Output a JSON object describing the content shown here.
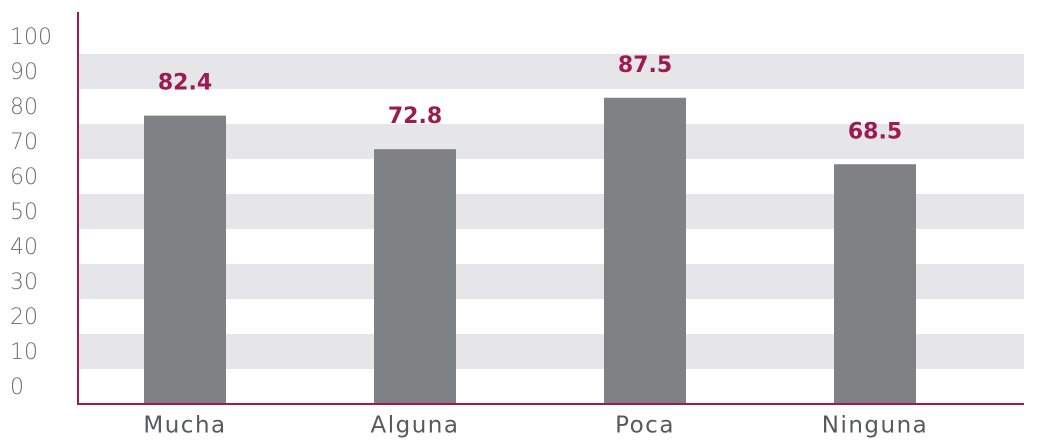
{
  "chart_data": {
    "type": "bar",
    "categories": [
      "Mucha",
      "Alguna",
      "Poca",
      "Ninguna"
    ],
    "values": [
      82.4,
      72.8,
      87.5,
      68.5
    ],
    "color": "#808184",
    "label_color": "#9c1b50",
    "axis_color": "#9c1b50",
    "band_color": "#e6e6e8",
    "ylim": [
      0,
      100
    ],
    "yticks": [
      0,
      10,
      20,
      30,
      40,
      50,
      60,
      70,
      80,
      90,
      100
    ],
    "grid": "bands"
  }
}
